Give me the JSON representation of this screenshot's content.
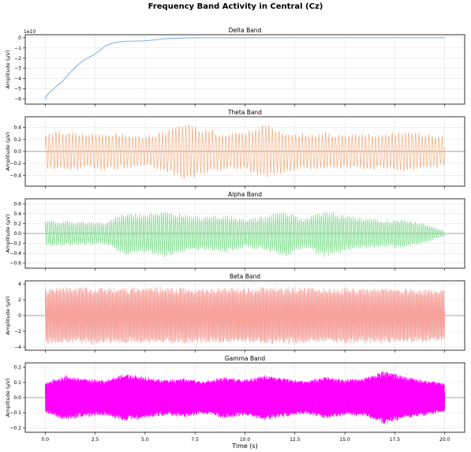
{
  "figure": {
    "title": "Frequency Band Activity in Central (Cz)",
    "xlabel": "Time (s)"
  },
  "chart_data": [
    {
      "type": "line",
      "title": "Delta Band",
      "ylabel": "Amplitude (µV)",
      "offset_text": "1e10",
      "color": "#7aaee3",
      "xlim": [
        -1,
        21
      ],
      "ylim": [
        -6.5,
        0.3
      ],
      "yticks": [
        0,
        -1,
        -2,
        -3,
        -4,
        -5,
        -6
      ],
      "ytick_labels": [
        "0",
        "−1",
        "−2",
        "−3",
        "−4",
        "−5",
        "−6"
      ],
      "x": [
        0,
        0.1,
        0.3,
        0.6,
        0.9,
        1.2,
        1.5,
        1.8,
        2.1,
        2.4,
        2.7,
        3.0,
        3.5,
        4.0,
        5.0,
        5.5,
        6.0,
        7.0,
        8.0,
        10.0,
        12.0,
        15.0,
        18.0,
        20.0
      ],
      "y": [
        -6.0,
        -5.6,
        -5.2,
        -4.7,
        -4.2,
        -3.5,
        -2.9,
        -2.4,
        -2.0,
        -1.7,
        -1.3,
        -0.8,
        -0.45,
        -0.35,
        -0.3,
        -0.2,
        -0.1,
        -0.02,
        0,
        0,
        0,
        0,
        0,
        0
      ]
    },
    {
      "type": "line",
      "title": "Theta Band",
      "ylabel": "Amplitude (µV)",
      "color": "#f5a878",
      "xlim": [
        -1,
        21
      ],
      "ylim": [
        -0.58,
        0.58
      ],
      "yticks": [
        0.4,
        0.2,
        0.0,
        -0.2,
        -0.4
      ],
      "ytick_labels": [
        "0.4",
        "0.2",
        "0.0",
        "−0.2",
        "−0.4"
      ],
      "freq": 6,
      "envelope_x": [
        0,
        1,
        2,
        3,
        4,
        5,
        6,
        7,
        8,
        9,
        10,
        11,
        12,
        13,
        14,
        15,
        16,
        17,
        18,
        19,
        20
      ],
      "envelope": [
        0.32,
        0.36,
        0.3,
        0.34,
        0.3,
        0.26,
        0.36,
        0.5,
        0.4,
        0.32,
        0.34,
        0.48,
        0.36,
        0.3,
        0.34,
        0.28,
        0.32,
        0.3,
        0.36,
        0.3,
        0.26
      ]
    },
    {
      "type": "line",
      "title": "Alpha Band",
      "ylabel": "Amplitude (µV)",
      "color": "#7fdc8e",
      "xlim": [
        -1,
        21
      ],
      "ylim": [
        -0.7,
        0.7
      ],
      "yticks": [
        0.6,
        0.4,
        0.2,
        0.0,
        -0.2,
        -0.4,
        -0.6
      ],
      "ytick_labels": [
        "0.6",
        "0.4",
        "0.2",
        "0.0",
        "−0.2",
        "−0.4",
        "−0.6"
      ],
      "freq": 10,
      "envelope_x": [
        0,
        1,
        2,
        3,
        4,
        5,
        6,
        7,
        8,
        9,
        10,
        11,
        12,
        13,
        14,
        15,
        16,
        17,
        18,
        19,
        20
      ],
      "envelope": [
        0.28,
        0.26,
        0.24,
        0.22,
        0.45,
        0.4,
        0.5,
        0.38,
        0.35,
        0.4,
        0.3,
        0.36,
        0.48,
        0.3,
        0.5,
        0.38,
        0.32,
        0.28,
        0.3,
        0.2,
        0.05
      ]
    },
    {
      "type": "line",
      "title": "Beta Band",
      "ylabel": "Amplitude (µV)",
      "color": "#f6a19a",
      "xlim": [
        -1,
        21
      ],
      "ylim": [
        -4.4,
        4.4
      ],
      "yticks": [
        4,
        2,
        0,
        -2,
        -4
      ],
      "ytick_labels": [
        "4",
        "2",
        "0",
        "−2",
        "−4"
      ],
      "freq": 20,
      "envelope_x": [
        0,
        2,
        4,
        6,
        8,
        10,
        12,
        14,
        16,
        18,
        20
      ],
      "envelope": [
        3.6,
        3.7,
        3.6,
        3.7,
        3.5,
        3.6,
        3.7,
        3.5,
        3.6,
        3.5,
        3.4
      ]
    },
    {
      "type": "line",
      "title": "Gamma Band",
      "ylabel": "Amplitude (µV)",
      "color": "#ff00ff",
      "xlim": [
        -1,
        21
      ],
      "ylim": [
        -0.23,
        0.23
      ],
      "yticks": [
        0.2,
        0.1,
        0.0,
        -0.1,
        -0.2
      ],
      "ytick_labels": [
        "0.2",
        "0.1",
        "0.0",
        "−0.1",
        "−0.2"
      ],
      "freq": 40,
      "envelope_x": [
        0,
        1,
        2,
        3,
        4,
        5,
        6,
        7,
        8,
        9,
        10,
        11,
        12,
        13,
        14,
        15,
        16,
        17,
        18,
        19,
        20
      ],
      "envelope": [
        0.1,
        0.15,
        0.13,
        0.12,
        0.16,
        0.14,
        0.12,
        0.13,
        0.11,
        0.14,
        0.12,
        0.15,
        0.13,
        0.11,
        0.14,
        0.12,
        0.13,
        0.18,
        0.14,
        0.12,
        0.1
      ]
    }
  ],
  "xaxis": {
    "ticks": [
      0,
      2.5,
      5,
      7.5,
      10,
      12.5,
      15,
      17.5,
      20
    ],
    "tick_labels": [
      "0.0",
      "2.5",
      "5.0",
      "7.5",
      "10.0",
      "12.5",
      "15.0",
      "17.5",
      "20.0"
    ]
  }
}
